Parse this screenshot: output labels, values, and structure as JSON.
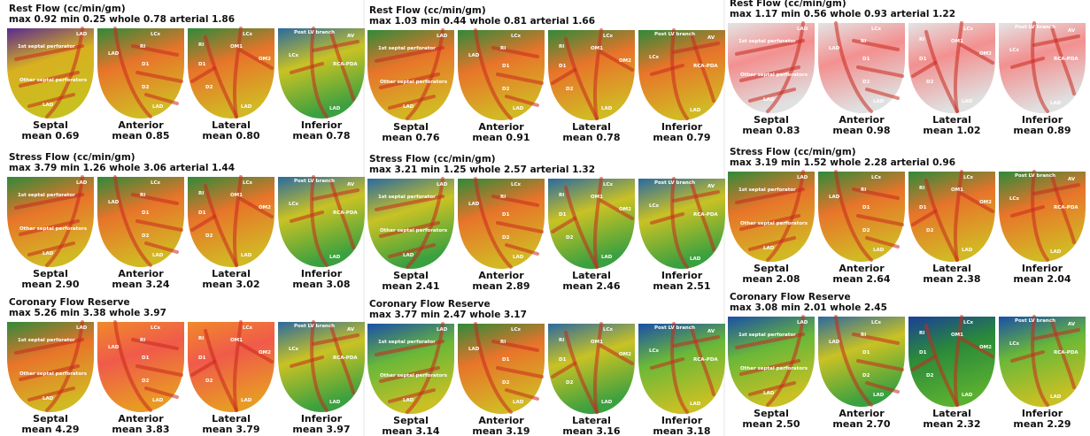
{
  "views": [
    {
      "name": "Septal",
      "labels": [
        "LAD",
        "1st septal perforator",
        "Other septal perforators",
        "LAD"
      ]
    },
    {
      "name": "Anterior",
      "labels": [
        "LCx",
        "RI",
        "LAD",
        "D1",
        "D2",
        "LAD"
      ]
    },
    {
      "name": "Lateral",
      "labels": [
        "LCx",
        "RI",
        "OM1",
        "OM2",
        "D1",
        "D2",
        "LAD"
      ]
    },
    {
      "name": "Inferior",
      "labels": [
        "Post LV branch",
        "AV",
        "LCx",
        "RCA-PDA",
        "LAD"
      ]
    }
  ],
  "columns": [
    {
      "panels": [
        {
          "title": "Rest Flow (cc/min/gm)",
          "stats": "max 0.92 min 0.25 whole 0.78 arterial 1.86",
          "means": [
            "mean 0.69",
            "mean 0.85",
            "mean 0.80",
            "mean 0.78"
          ]
        },
        {
          "title": "Stress Flow (cc/min/gm)",
          "stats": "max 3.79 min 1.26 whole 3.06 arterial 1.44",
          "means": [
            "mean 2.90",
            "mean 3.24",
            "mean 3.02",
            "mean 3.08"
          ]
        },
        {
          "title": "Coronary Flow Reserve",
          "stats": "max 5.26 min 3.38 whole 3.97",
          "means": [
            "mean 4.29",
            "mean 3.83",
            "mean 3.79",
            "mean 3.97"
          ]
        }
      ]
    },
    {
      "panels": [
        {
          "title": "Rest Flow (cc/min/gm)",
          "stats": "max 1.03 min 0.44 whole 0.81 arterial 1.66",
          "means": [
            "mean 0.76",
            "mean 0.91",
            "mean 0.78",
            "mean 0.79"
          ]
        },
        {
          "title": "Stress Flow (cc/min/gm)",
          "stats": "max 3.21 min 1.25 whole 2.57 arterial 1.32",
          "means": [
            "mean 2.41",
            "mean 2.89",
            "mean 2.46",
            "mean 2.51"
          ]
        },
        {
          "title": "Coronary Flow Reserve",
          "stats": "max 3.77 min 2.47 whole 3.17",
          "means": [
            "mean 3.14",
            "mean 3.19",
            "mean 3.16",
            "mean 3.18"
          ]
        }
      ]
    },
    {
      "panels": [
        {
          "title": "Rest Flow (cc/min/gm)",
          "stats": "max 1.17 min 0.56 whole 0.93 arterial 1.22",
          "means": [
            "mean 0.83",
            "mean 0.98",
            "mean 1.02",
            "mean 0.89"
          ]
        },
        {
          "title": "Stress Flow (cc/min/gm)",
          "stats": "max 3.19 min 1.52 whole 2.28 arterial 0.96",
          "means": [
            "mean 2.08",
            "mean 2.64",
            "mean 2.38",
            "mean 2.04"
          ]
        },
        {
          "title": "Coronary Flow Reserve",
          "stats": "max 3.08 min 2.01 whole 2.45",
          "means": [
            "mean 2.50",
            "mean 2.70",
            "mean 2.32",
            "mean 2.29"
          ]
        }
      ]
    }
  ]
}
